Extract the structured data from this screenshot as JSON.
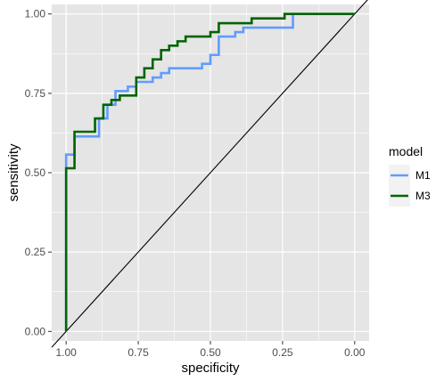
{
  "chart_data": {
    "type": "line",
    "xlabel": "specificity",
    "ylabel": "sensitivity",
    "x_reversed": true,
    "xlim": [
      1.05,
      -0.05
    ],
    "ylim": [
      -0.03,
      1.03
    ],
    "x_ticks": [
      {
        "value": 1.0,
        "label": "1.00"
      },
      {
        "value": 0.75,
        "label": "0.75"
      },
      {
        "value": 0.5,
        "label": "0.50"
      },
      {
        "value": 0.25,
        "label": "0.25"
      },
      {
        "value": 0.0,
        "label": "0.00"
      }
    ],
    "y_ticks": [
      {
        "value": 0.0,
        "label": "0.00"
      },
      {
        "value": 0.25,
        "label": "0.25"
      },
      {
        "value": 0.5,
        "label": "0.50"
      },
      {
        "value": 0.75,
        "label": "0.75"
      },
      {
        "value": 1.0,
        "label": "1.00"
      }
    ],
    "grid": true,
    "background": "#e5e5e5",
    "grid_color": "#ffffff",
    "reference_line": {
      "from": [
        1.0,
        0.0
      ],
      "to": [
        0.0,
        1.0
      ],
      "color": "#000000"
    },
    "legend": {
      "title": "model",
      "position": "right"
    },
    "series": [
      {
        "name": "M1",
        "color": "#619cff",
        "points": [
          [
            1.0,
            0.0
          ],
          [
            1.0,
            0.557
          ],
          [
            0.971,
            0.557
          ],
          [
            0.971,
            0.614
          ],
          [
            0.886,
            0.614
          ],
          [
            0.886,
            0.671
          ],
          [
            0.857,
            0.671
          ],
          [
            0.857,
            0.714
          ],
          [
            0.829,
            0.714
          ],
          [
            0.829,
            0.757
          ],
          [
            0.786,
            0.757
          ],
          [
            0.786,
            0.771
          ],
          [
            0.757,
            0.771
          ],
          [
            0.757,
            0.786
          ],
          [
            0.7,
            0.786
          ],
          [
            0.7,
            0.8
          ],
          [
            0.671,
            0.8
          ],
          [
            0.671,
            0.814
          ],
          [
            0.643,
            0.814
          ],
          [
            0.643,
            0.829
          ],
          [
            0.529,
            0.829
          ],
          [
            0.529,
            0.843
          ],
          [
            0.5,
            0.843
          ],
          [
            0.5,
            0.871
          ],
          [
            0.471,
            0.871
          ],
          [
            0.471,
            0.929
          ],
          [
            0.414,
            0.929
          ],
          [
            0.414,
            0.943
          ],
          [
            0.386,
            0.943
          ],
          [
            0.386,
            0.957
          ],
          [
            0.214,
            0.957
          ],
          [
            0.214,
            1.0
          ],
          [
            0.0,
            1.0
          ]
        ]
      },
      {
        "name": "M3",
        "color": "#006400",
        "points": [
          [
            1.0,
            0.0
          ],
          [
            1.0,
            0.514
          ],
          [
            0.971,
            0.514
          ],
          [
            0.971,
            0.629
          ],
          [
            0.9,
            0.629
          ],
          [
            0.9,
            0.671
          ],
          [
            0.871,
            0.671
          ],
          [
            0.871,
            0.714
          ],
          [
            0.843,
            0.714
          ],
          [
            0.843,
            0.729
          ],
          [
            0.814,
            0.729
          ],
          [
            0.814,
            0.743
          ],
          [
            0.757,
            0.743
          ],
          [
            0.757,
            0.8
          ],
          [
            0.729,
            0.8
          ],
          [
            0.729,
            0.829
          ],
          [
            0.7,
            0.829
          ],
          [
            0.7,
            0.857
          ],
          [
            0.671,
            0.857
          ],
          [
            0.671,
            0.886
          ],
          [
            0.643,
            0.886
          ],
          [
            0.643,
            0.9
          ],
          [
            0.614,
            0.9
          ],
          [
            0.614,
            0.914
          ],
          [
            0.586,
            0.914
          ],
          [
            0.586,
            0.929
          ],
          [
            0.5,
            0.929
          ],
          [
            0.5,
            0.943
          ],
          [
            0.471,
            0.943
          ],
          [
            0.471,
            0.971
          ],
          [
            0.357,
            0.971
          ],
          [
            0.357,
            0.986
          ],
          [
            0.243,
            0.986
          ],
          [
            0.243,
            1.0
          ],
          [
            0.0,
            1.0
          ]
        ]
      }
    ]
  }
}
